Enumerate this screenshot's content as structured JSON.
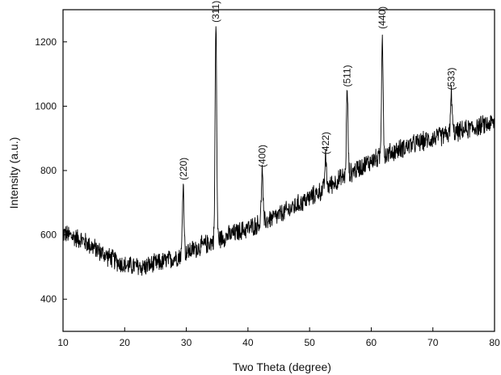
{
  "chart_data": {
    "type": "line",
    "title": "",
    "xlabel": "Two Theta (degree)",
    "ylabel": "Intensity (a.u.)",
    "xlim": [
      10,
      80
    ],
    "ylim": [
      300,
      1300
    ],
    "x_ticks": [
      10,
      20,
      30,
      40,
      50,
      60,
      70,
      80
    ],
    "y_ticks": [
      400,
      600,
      800,
      1000,
      1200
    ],
    "grid": false,
    "legend": "none",
    "series_color": "#000000",
    "background_baseline": [
      {
        "x": 10,
        "y": 605
      },
      {
        "x": 13,
        "y": 585
      },
      {
        "x": 17,
        "y": 535
      },
      {
        "x": 20,
        "y": 505
      },
      {
        "x": 23,
        "y": 500
      },
      {
        "x": 27,
        "y": 520
      },
      {
        "x": 30,
        "y": 545
      },
      {
        "x": 35,
        "y": 585
      },
      {
        "x": 40,
        "y": 620
      },
      {
        "x": 45,
        "y": 660
      },
      {
        "x": 50,
        "y": 715
      },
      {
        "x": 55,
        "y": 775
      },
      {
        "x": 60,
        "y": 830
      },
      {
        "x": 65,
        "y": 870
      },
      {
        "x": 70,
        "y": 900
      },
      {
        "x": 75,
        "y": 925
      },
      {
        "x": 80,
        "y": 950
      }
    ],
    "noise_amplitude": 35,
    "peaks": [
      {
        "label": "(220)",
        "x": 29.5,
        "y": 760
      },
      {
        "label": "(311)",
        "x": 34.8,
        "y": 1250
      },
      {
        "label": "(400)",
        "x": 42.3,
        "y": 800
      },
      {
        "label": "(422)",
        "x": 52.6,
        "y": 840
      },
      {
        "label": "(511)",
        "x": 56.1,
        "y": 1050
      },
      {
        "label": "(440)",
        "x": 61.8,
        "y": 1230
      },
      {
        "label": "(533)",
        "x": 73.0,
        "y": 1040
      }
    ]
  }
}
